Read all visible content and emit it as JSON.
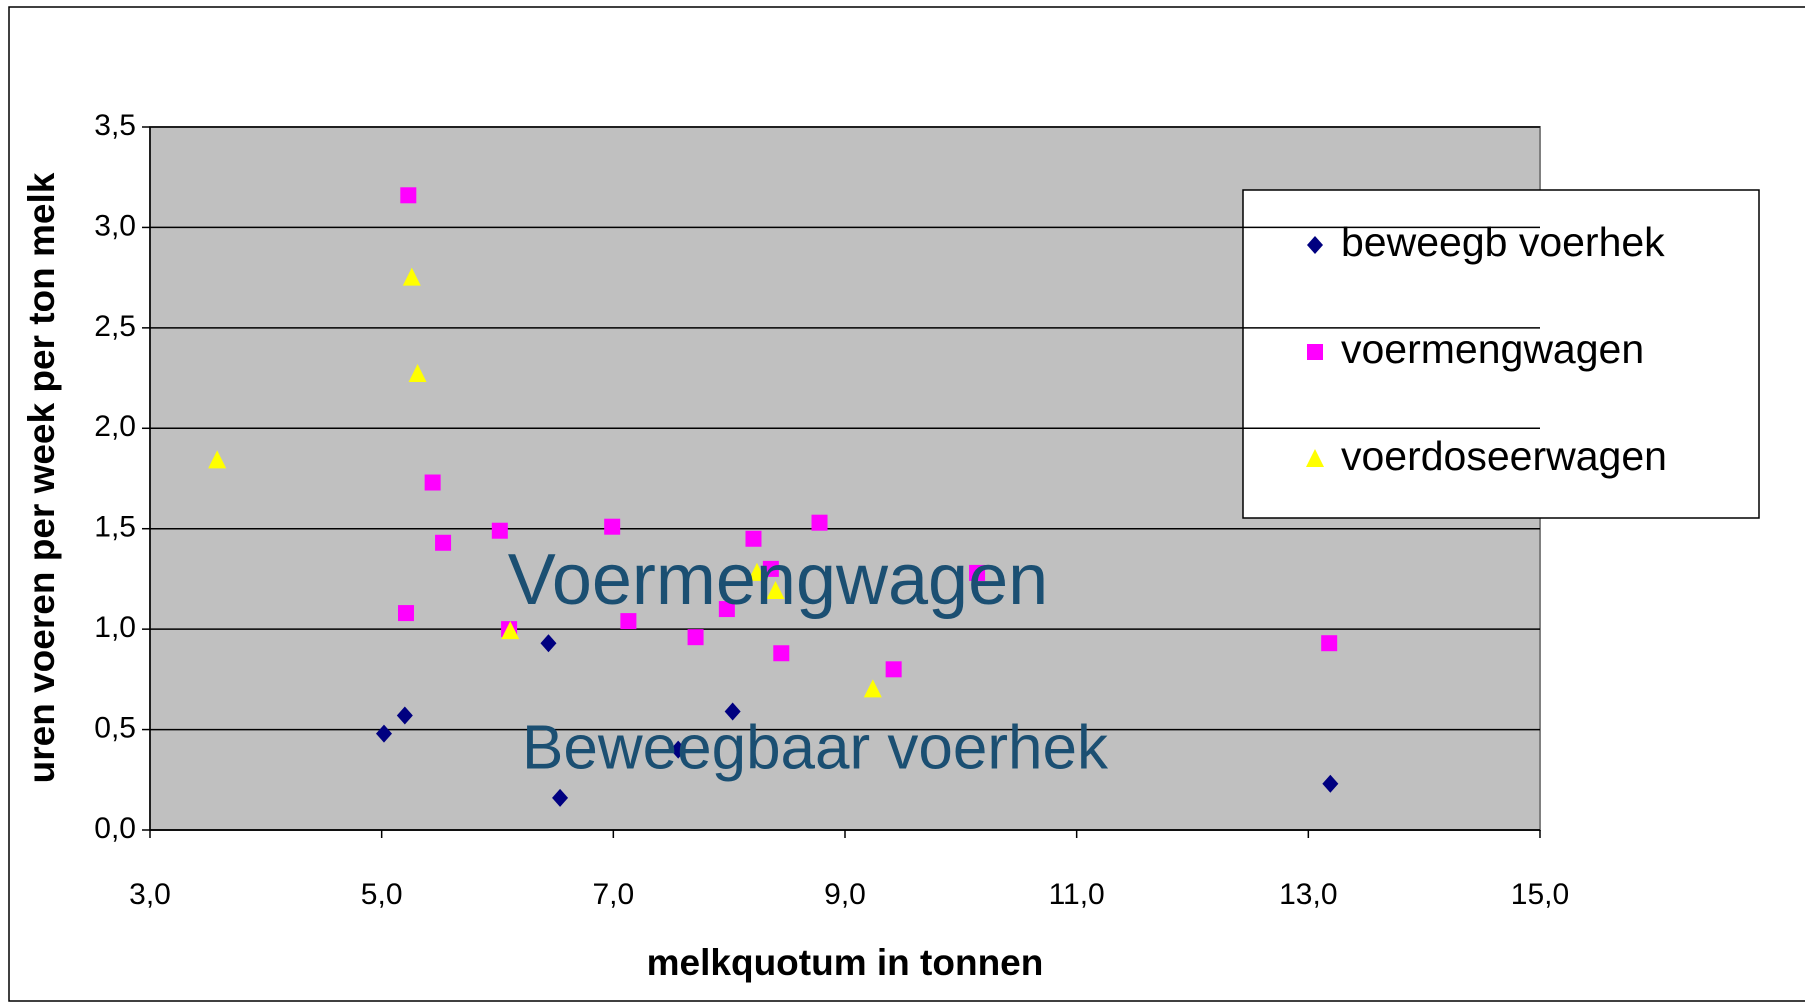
{
  "chart_data": {
    "type": "scatter",
    "x_label": "melkquotum in tonnen",
    "y_label": "uren voeren per week per ton melk",
    "xlim": [
      3,
      15
    ],
    "ylim": [
      0,
      3.5
    ],
    "xticks": [
      {
        "value": 3,
        "label": "3,0"
      },
      {
        "value": 5,
        "label": "5,0"
      },
      {
        "value": 7,
        "label": "7,0"
      },
      {
        "value": 9,
        "label": "9,0"
      },
      {
        "value": 11,
        "label": "11,0"
      },
      {
        "value": 13,
        "label": "13,0"
      },
      {
        "value": 15,
        "label": "15,0"
      }
    ],
    "yticks": [
      {
        "value": 0,
        "label": "0,0"
      },
      {
        "value": 0.5,
        "label": "0,5"
      },
      {
        "value": 1,
        "label": "1,0"
      },
      {
        "value": 1.5,
        "label": "1,5"
      },
      {
        "value": 2,
        "label": "2,0"
      },
      {
        "value": 2.5,
        "label": "2,5"
      },
      {
        "value": 3,
        "label": "3,0"
      },
      {
        "value": 3.5,
        "label": "3,5"
      }
    ],
    "grid": true,
    "legend": "upper right",
    "annotations": [
      "Voermengwagen",
      "Beweegbaar voerhek"
    ],
    "series": [
      {
        "name": "beweegb voerhek",
        "color": "#000080",
        "marker": "diamond",
        "x": [
          5.02,
          5.2,
          6.44,
          6.54,
          7.56,
          8.03,
          13.19
        ],
        "values": [
          0.48,
          0.57,
          0.93,
          0.16,
          0.4,
          0.59,
          0.23
        ]
      },
      {
        "name": "voermengwagen",
        "color": "#ff00ff",
        "marker": "square",
        "x": [
          5.23,
          5.21,
          5.44,
          5.53,
          6.02,
          6.1,
          6.99,
          7.13,
          7.71,
          7.98,
          8.21,
          8.36,
          8.45,
          8.78,
          9.42,
          10.14,
          13.18
        ],
        "values": [
          3.16,
          1.08,
          1.73,
          1.43,
          1.49,
          1.0,
          1.51,
          1.04,
          0.96,
          1.1,
          1.45,
          1.3,
          0.88,
          1.53,
          0.8,
          1.28,
          0.93
        ]
      },
      {
        "name": "voerdoseerwagen",
        "color": "#ffff00",
        "marker": "triangle",
        "x": [
          3.58,
          5.26,
          5.31,
          6.11,
          8.24,
          8.4,
          9.24
        ],
        "values": [
          1.84,
          2.75,
          2.27,
          0.99,
          1.28,
          1.19,
          0.7
        ]
      }
    ]
  }
}
